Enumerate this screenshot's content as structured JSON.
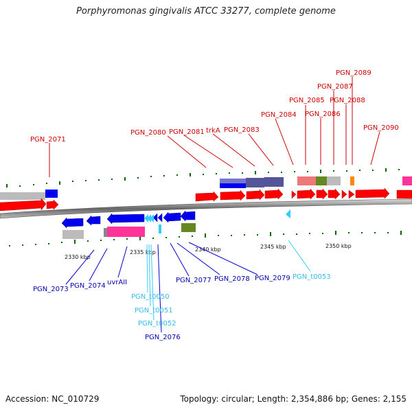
{
  "title": "Porphyromonas gingivalis ATCC 33277, complete genome",
  "footer": {
    "accession": "Accession: NC_010729",
    "summary": "Topology: circular; Length: 2,354,886 bp; Genes: 2,155"
  },
  "colors": {
    "forward_gene": "#ff0000",
    "reverse_gene": "#0000ee",
    "trna": "#33ccff",
    "forward_label": "#cc0000",
    "reverse_label": "#0000aa",
    "trna_label": "#33bbee",
    "tick_mark": "#006600"
  },
  "scale_ticks": [
    {
      "label": "2330 kbp"
    },
    {
      "label": "2335 kbp"
    },
    {
      "label": "2340 kbp"
    },
    {
      "label": "2345 kbp"
    },
    {
      "label": "2350 kbp"
    }
  ],
  "forward_labels": [
    {
      "name": "PGN_2071"
    },
    {
      "name": "PGN_2080"
    },
    {
      "name": "PGN_2081"
    },
    {
      "name": "trkA"
    },
    {
      "name": "PGN_2083"
    },
    {
      "name": "PGN_2084"
    },
    {
      "name": "PGN_2085"
    },
    {
      "name": "PGN_2086"
    },
    {
      "name": "PGN_2087"
    },
    {
      "name": "PGN_2088"
    },
    {
      "name": "PGN_2089"
    },
    {
      "name": "PGN_2090"
    }
  ],
  "reverse_labels": [
    {
      "name": "PGN_2073",
      "kind": "gene"
    },
    {
      "name": "PGN_2074",
      "kind": "gene"
    },
    {
      "name": "uvrAII",
      "kind": "gene"
    },
    {
      "name": "PGN_t0050",
      "kind": "trna"
    },
    {
      "name": "PGN_t0051",
      "kind": "trna"
    },
    {
      "name": "PGN_t0052",
      "kind": "trna"
    },
    {
      "name": "PGN_2076",
      "kind": "gene"
    },
    {
      "name": "PGN_2077",
      "kind": "gene"
    },
    {
      "name": "PGN_2078",
      "kind": "gene"
    },
    {
      "name": "PGN_2079",
      "kind": "gene"
    },
    {
      "name": "PGN_t0053",
      "kind": "trna"
    }
  ]
}
